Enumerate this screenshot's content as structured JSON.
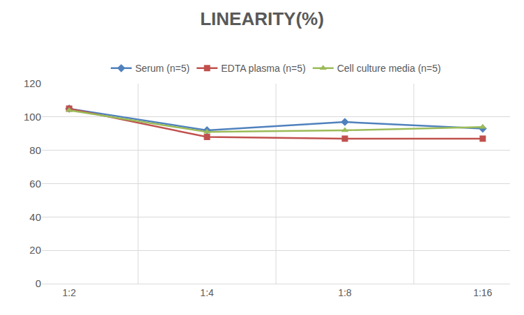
{
  "chart_data": {
    "type": "line",
    "title": "LINEARITY(%)",
    "categories": [
      "1:2",
      "1:4",
      "1:8",
      "1:16"
    ],
    "series": [
      {
        "name": "Serum (n=5)",
        "color": "#4f81bd",
        "marker": "diamond",
        "values": [
          105,
          92,
          97,
          93
        ]
      },
      {
        "name": "EDTA plasma (n=5)",
        "color": "#c0504d",
        "marker": "square",
        "values": [
          105,
          88,
          87,
          87
        ]
      },
      {
        "name": "Cell culture media (n=5)",
        "color": "#9bbb59",
        "marker": "triangle-up",
        "values": [
          104,
          91,
          92,
          94
        ]
      }
    ],
    "ylim": [
      0,
      120
    ],
    "yticks": [
      0,
      20,
      40,
      60,
      80,
      100,
      120
    ],
    "grid": true,
    "legend": "top"
  }
}
